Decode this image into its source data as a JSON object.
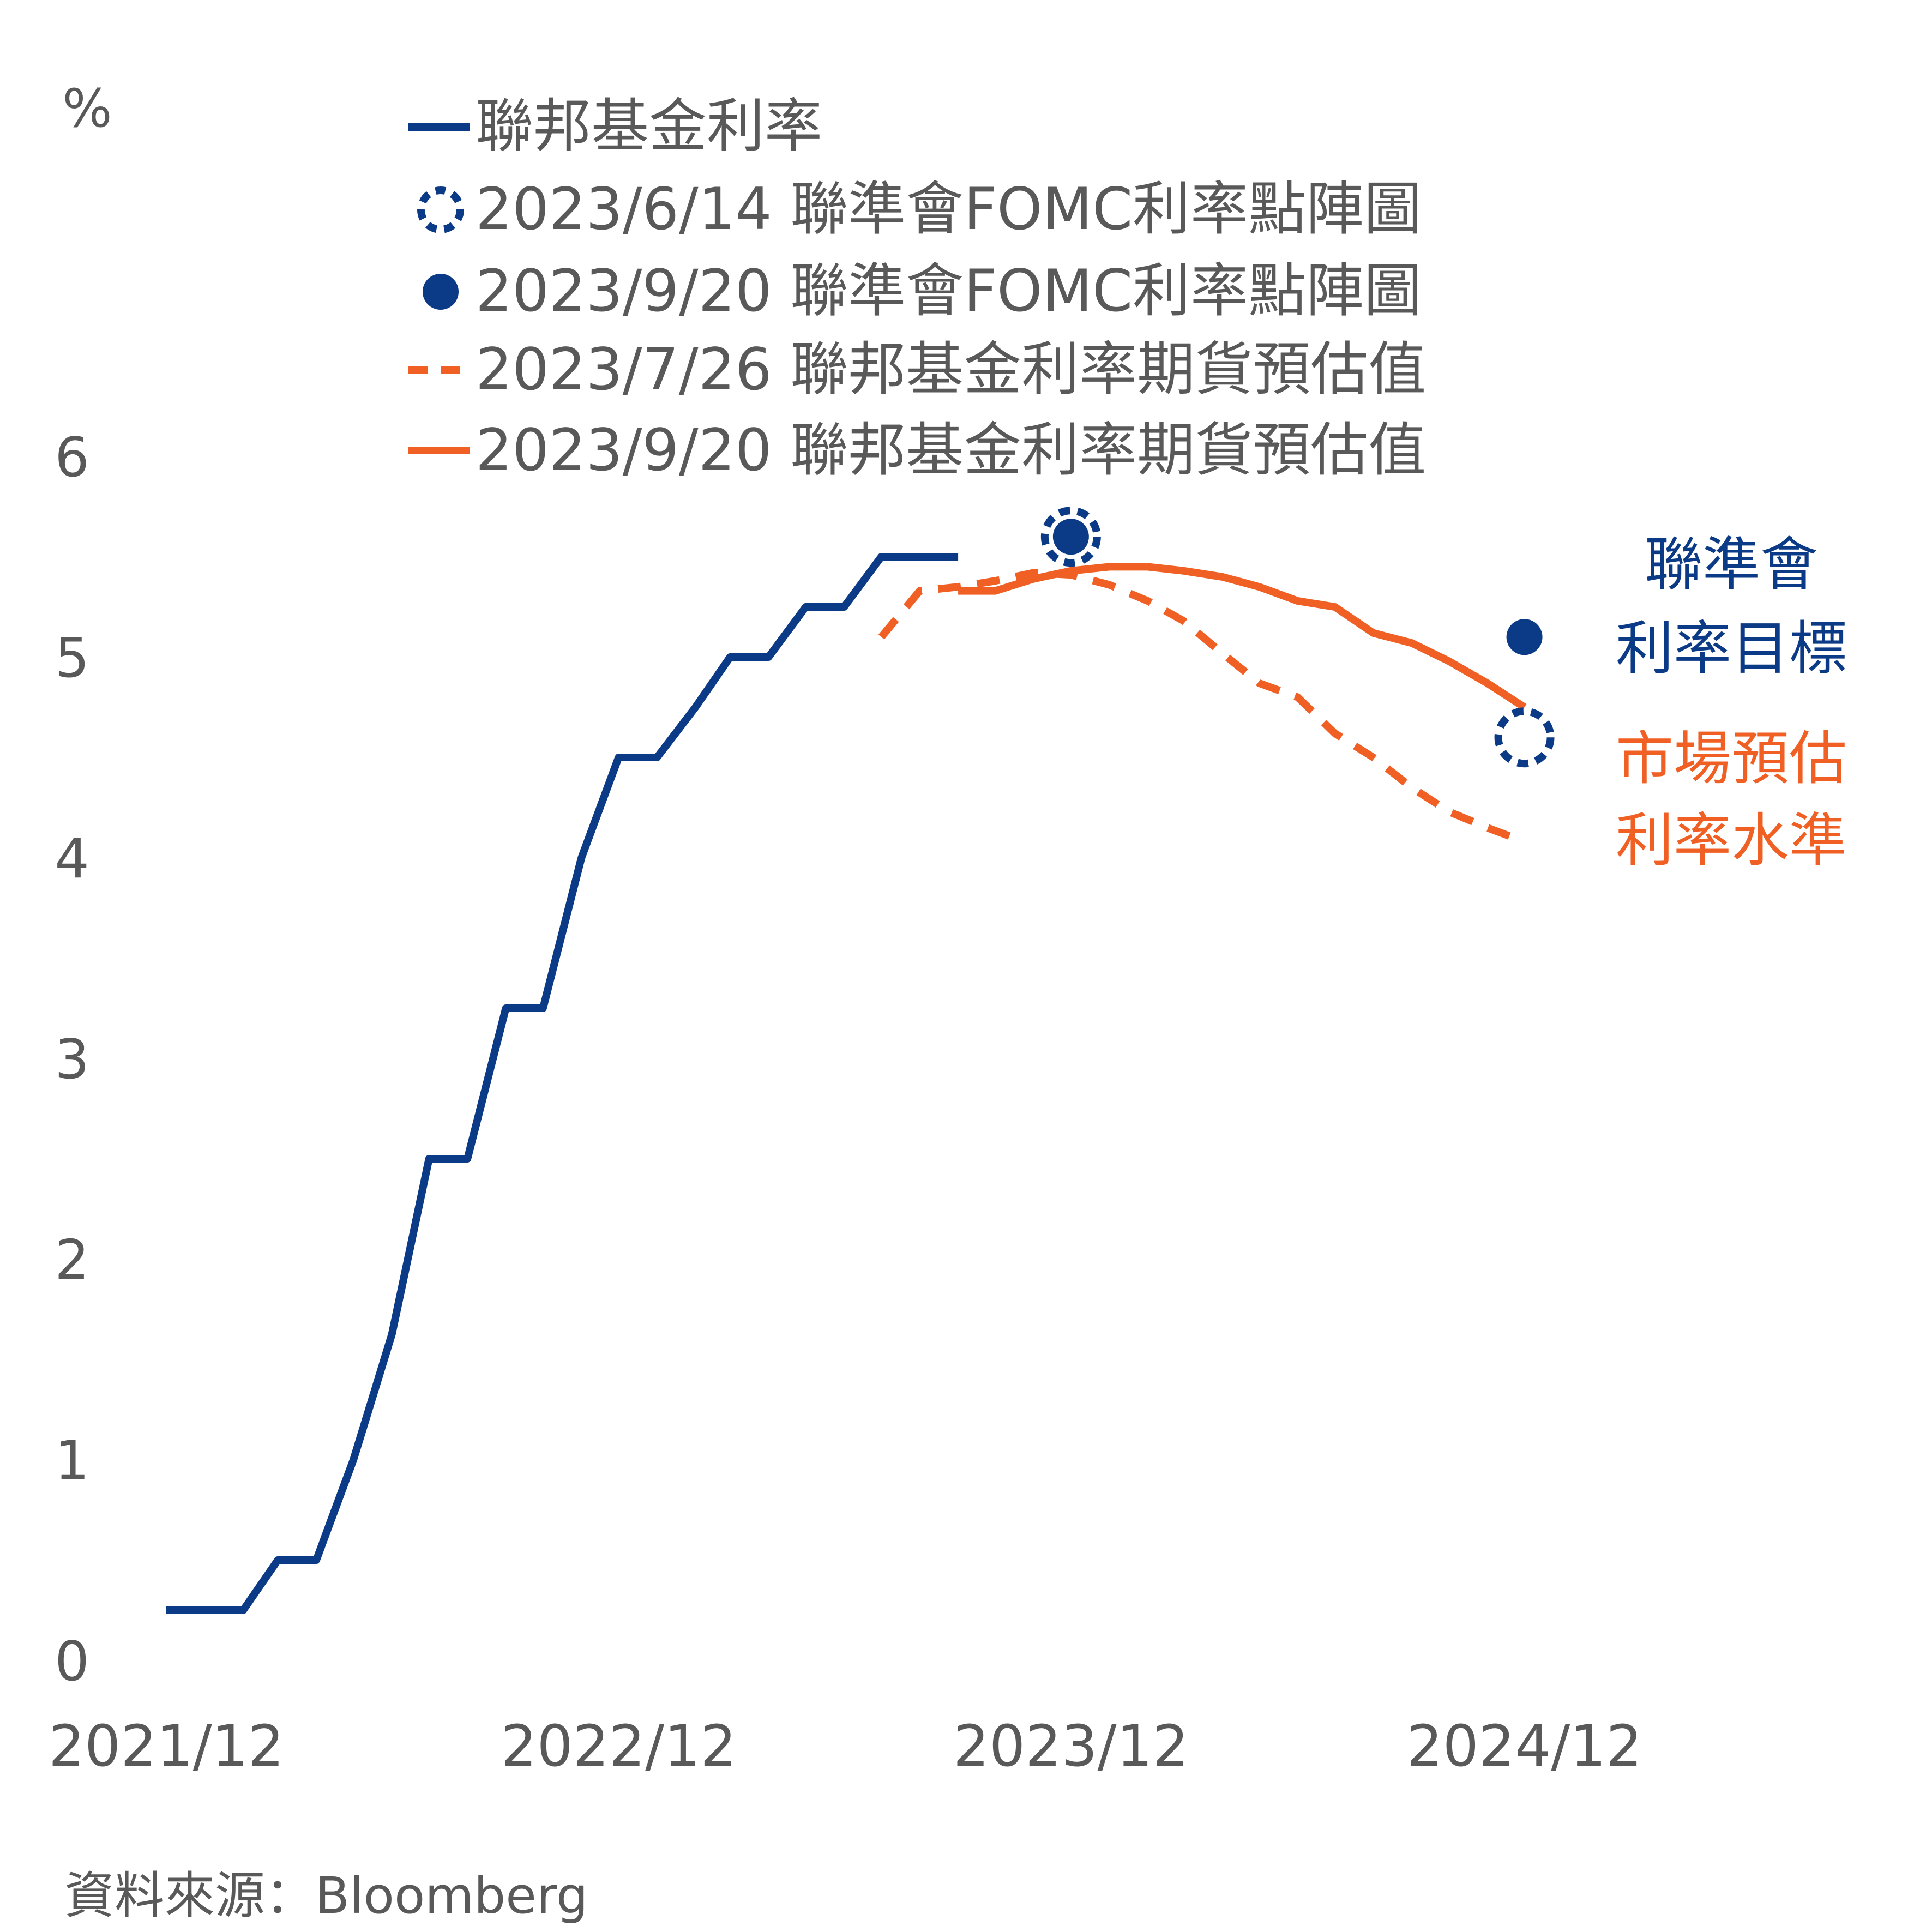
{
  "chart_data": {
    "type": "line",
    "ylabel": "%",
    "ylim": [
      0,
      6
    ],
    "yticks": [
      "0",
      "1",
      "2",
      "3",
      "4",
      "5",
      "6"
    ],
    "xlim": [
      "2021-12",
      "2025-06"
    ],
    "xticks": [
      {
        "value": "2021-12",
        "label": "2021/12"
      },
      {
        "value": "2022-12",
        "label": "2022/12"
      },
      {
        "value": "2023-12",
        "label": "2023/12"
      },
      {
        "value": "2024-12",
        "label": "2024/12"
      }
    ],
    "grid": false,
    "legend": {
      "position": "top-center",
      "entries": [
        {
          "text": "聯邦基金利率",
          "marker": "solid-line",
          "color": "#0b3a86"
        },
        {
          "text": "2023/6/14 聯準會FOMC利率點陣圖",
          "marker": "dotted-circle",
          "color": "#0b3a86"
        },
        {
          "text": "2023/9/20 聯準會FOMC利率點陣圖",
          "marker": "filled-circle",
          "color": "#0b3a86"
        },
        {
          "text": "2023/7/26 聯邦基金利率期貨預估值",
          "marker": "dashed-line",
          "color": "#f06025"
        },
        {
          "text": "2023/9/20 聯邦基金利率期貨預估值",
          "marker": "solid-line",
          "color": "#f06025"
        }
      ]
    },
    "series": [
      {
        "name": "聯邦基金利率",
        "style": "solid",
        "color": "#0b3a86",
        "points": [
          [
            "2021-12-01",
            0.25
          ],
          [
            "2022-02-01",
            0.25
          ],
          [
            "2022-03-01",
            0.5
          ],
          [
            "2022-04-01",
            0.5
          ],
          [
            "2022-05-01",
            1.0
          ],
          [
            "2022-06-01",
            1.625
          ],
          [
            "2022-07-01",
            2.5
          ],
          [
            "2022-08-01",
            2.5
          ],
          [
            "2022-09-01",
            3.25
          ],
          [
            "2022-10-01",
            3.25
          ],
          [
            "2022-11-01",
            4.0
          ],
          [
            "2022-12-01",
            4.5
          ],
          [
            "2023-01-01",
            4.5
          ],
          [
            "2023-02-01",
            4.75
          ],
          [
            "2023-03-01",
            5.0
          ],
          [
            "2023-04-01",
            5.0
          ],
          [
            "2023-05-01",
            5.25
          ],
          [
            "2023-06-01",
            5.25
          ],
          [
            "2023-07-01",
            5.5
          ],
          [
            "2023-09-01",
            5.5
          ]
        ]
      },
      {
        "name": "2023/7/26 聯邦基金利率期貨預估值",
        "style": "dashed",
        "color": "#f06025",
        "points": [
          [
            "2023-07-01",
            5.1
          ],
          [
            "2023-08-01",
            5.33
          ],
          [
            "2023-09-01",
            5.35
          ],
          [
            "2023-10-01",
            5.38
          ],
          [
            "2023-11-01",
            5.42
          ],
          [
            "2023-12-01",
            5.41
          ],
          [
            "2024-01-01",
            5.36
          ],
          [
            "2024-02-01",
            5.28
          ],
          [
            "2024-03-01",
            5.18
          ],
          [
            "2024-04-01",
            5.02
          ],
          [
            "2024-05-01",
            4.87
          ],
          [
            "2024-06-01",
            4.8
          ],
          [
            "2024-07-01",
            4.62
          ],
          [
            "2024-08-01",
            4.5
          ],
          [
            "2024-09-01",
            4.35
          ],
          [
            "2024-10-01",
            4.23
          ],
          [
            "2024-11-01",
            4.15
          ],
          [
            "2024-12-01",
            4.08
          ]
        ]
      },
      {
        "name": "2023/9/20 聯邦基金利率期貨預估值",
        "style": "solid",
        "color": "#f06025",
        "points": [
          [
            "2023-09-01",
            5.33
          ],
          [
            "2023-10-01",
            5.33
          ],
          [
            "2023-11-01",
            5.39
          ],
          [
            "2023-12-01",
            5.43
          ],
          [
            "2024-01-01",
            5.45
          ],
          [
            "2024-02-01",
            5.45
          ],
          [
            "2024-03-01",
            5.43
          ],
          [
            "2024-04-01",
            5.4
          ],
          [
            "2024-05-01",
            5.35
          ],
          [
            "2024-06-01",
            5.28
          ],
          [
            "2024-07-01",
            5.25
          ],
          [
            "2024-08-01",
            5.12
          ],
          [
            "2024-09-01",
            5.07
          ],
          [
            "2024-10-01",
            4.98
          ],
          [
            "2024-11-01",
            4.87
          ],
          [
            "2024-12-01",
            4.75
          ]
        ]
      }
    ],
    "markers": [
      {
        "name": "2023/6/14 聯準會FOMC利率點陣圖",
        "style": "dotted-circle",
        "points": [
          [
            "2023-12-01",
            5.6
          ],
          [
            "2024-12-01",
            4.6
          ]
        ]
      },
      {
        "name": "2023/9/20 聯準會FOMC利率點陣圖",
        "style": "filled-circle",
        "points": [
          [
            "2023-12-01",
            5.6
          ],
          [
            "2024-12-01",
            5.1
          ]
        ]
      }
    ],
    "annotations": [
      {
        "lines": [
          "聯準會",
          "利率目標"
        ],
        "color": "#0b3a86"
      },
      {
        "lines": [
          "市場預估",
          "利率水準"
        ],
        "color": "#f06025"
      }
    ],
    "source": "資料來源：Bloomberg"
  },
  "colors": {
    "navy": "#0b3a86",
    "orange": "#f06025",
    "text": "#595959"
  }
}
